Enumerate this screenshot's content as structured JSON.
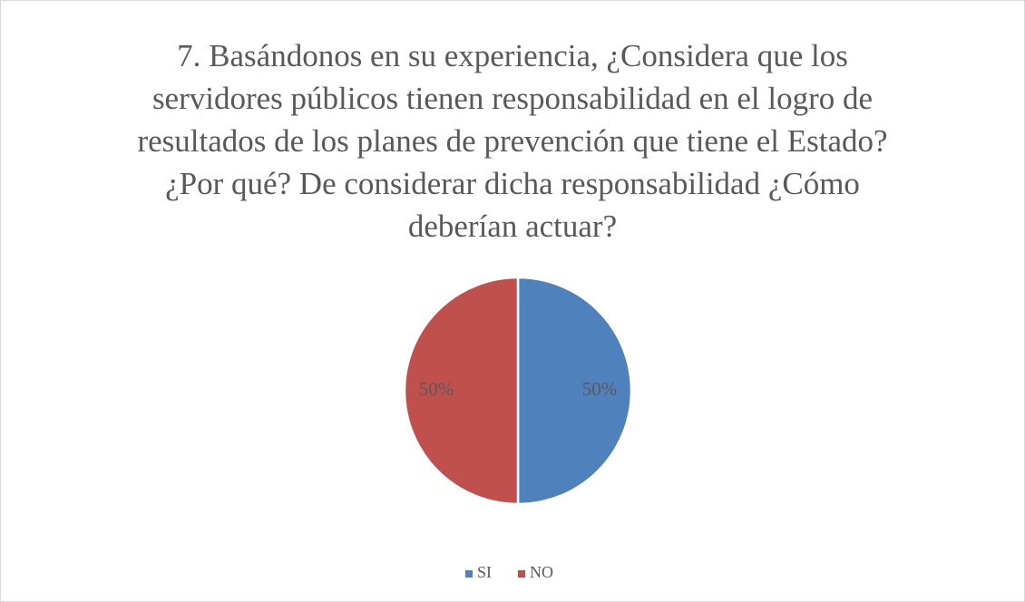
{
  "chart_data": {
    "type": "pie",
    "title": "7.   Basándonos en su experiencia, ¿Considera que los servidores públicos tienen responsabilidad en el logro de resultados de los planes de prevención que tiene el Estado? ¿Por qué? De considerar dicha responsabilidad ¿Cómo deberían actuar?",
    "categories": [
      "SI",
      "NO"
    ],
    "values": [
      50,
      50
    ],
    "value_labels": [
      "50%",
      "50%"
    ],
    "colors": [
      "#4f81bd",
      "#c0504d"
    ],
    "legend": "bottom"
  }
}
